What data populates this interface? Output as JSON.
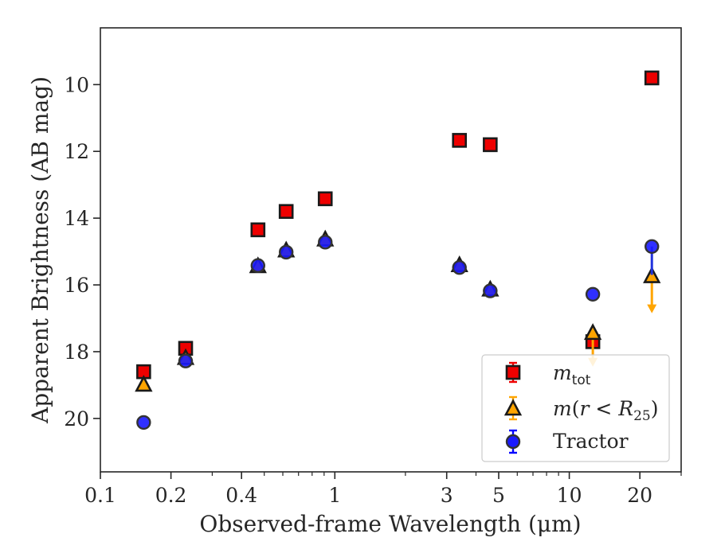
{
  "chart_data": {
    "type": "scatter",
    "xlabel": "Observed-frame Wavelength (μm)",
    "ylabel": "Apparent Brightness (AB mag)",
    "xscale": "log",
    "xlim": [
      0.1,
      30
    ],
    "ylim": [
      21.6,
      8.3
    ],
    "y_inverted": true,
    "grid": false,
    "legend_position": "lower-right",
    "x_ticks": [
      {
        "value": 0.1,
        "label": "0.1"
      },
      {
        "value": 0.2,
        "label": "0.2"
      },
      {
        "value": 0.4,
        "label": "0.4"
      },
      {
        "value": 1,
        "label": "1"
      },
      {
        "value": 3,
        "label": "3"
      },
      {
        "value": 5,
        "label": "5"
      },
      {
        "value": 10,
        "label": "10"
      },
      {
        "value": 20,
        "label": "20"
      }
    ],
    "x_minor_ticks": [
      0.3,
      0.5,
      0.6,
      0.7,
      0.8,
      0.9,
      2,
      4,
      6,
      7,
      8,
      9,
      30
    ],
    "y_ticks": [
      {
        "value": 10,
        "label": "10"
      },
      {
        "value": 12,
        "label": "12"
      },
      {
        "value": 14,
        "label": "14"
      },
      {
        "value": 16,
        "label": "16"
      },
      {
        "value": 18,
        "label": "18"
      },
      {
        "value": 20,
        "label": "20"
      }
    ],
    "series": [
      {
        "name": "m_tot",
        "marker": "square",
        "color": "#ee0000",
        "points": [
          {
            "x": 0.153,
            "y": 18.6
          },
          {
            "x": 0.231,
            "y": 17.9
          },
          {
            "x": 0.47,
            "y": 14.35
          },
          {
            "x": 0.62,
            "y": 13.8
          },
          {
            "x": 0.91,
            "y": 13.42
          },
          {
            "x": 3.4,
            "y": 11.67
          },
          {
            "x": 4.6,
            "y": 11.8
          },
          {
            "x": 12.6,
            "y": 17.7
          },
          {
            "x": 22.5,
            "y": 9.8
          }
        ]
      },
      {
        "name": "m(r < R25)",
        "marker": "triangle",
        "color": "#ffa500",
        "points": [
          {
            "x": 0.153,
            "y": 19.0
          },
          {
            "x": 0.231,
            "y": 18.2
          },
          {
            "x": 0.47,
            "y": 15.45
          },
          {
            "x": 0.62,
            "y": 14.98
          },
          {
            "x": 0.91,
            "y": 14.65
          },
          {
            "x": 3.4,
            "y": 15.42
          },
          {
            "x": 4.6,
            "y": 16.15
          },
          {
            "x": 12.6,
            "y": 17.45,
            "upper_limit": true,
            "limit_to": 18.4
          },
          {
            "x": 22.5,
            "y": 15.75,
            "upper_limit": true,
            "limit_to": 16.8
          }
        ]
      },
      {
        "name": "Tractor",
        "marker": "circle",
        "color": "#0000ff",
        "points": [
          {
            "x": 0.153,
            "y": 20.12
          },
          {
            "x": 0.231,
            "y": 18.28
          },
          {
            "x": 0.47,
            "y": 15.42
          },
          {
            "x": 0.62,
            "y": 15.02
          },
          {
            "x": 0.91,
            "y": 14.72
          },
          {
            "x": 3.4,
            "y": 15.48
          },
          {
            "x": 4.6,
            "y": 16.18
          },
          {
            "x": 12.6,
            "y": 16.28
          },
          {
            "x": 22.5,
            "y": 14.85,
            "error_to": 15.7
          }
        ]
      }
    ]
  }
}
